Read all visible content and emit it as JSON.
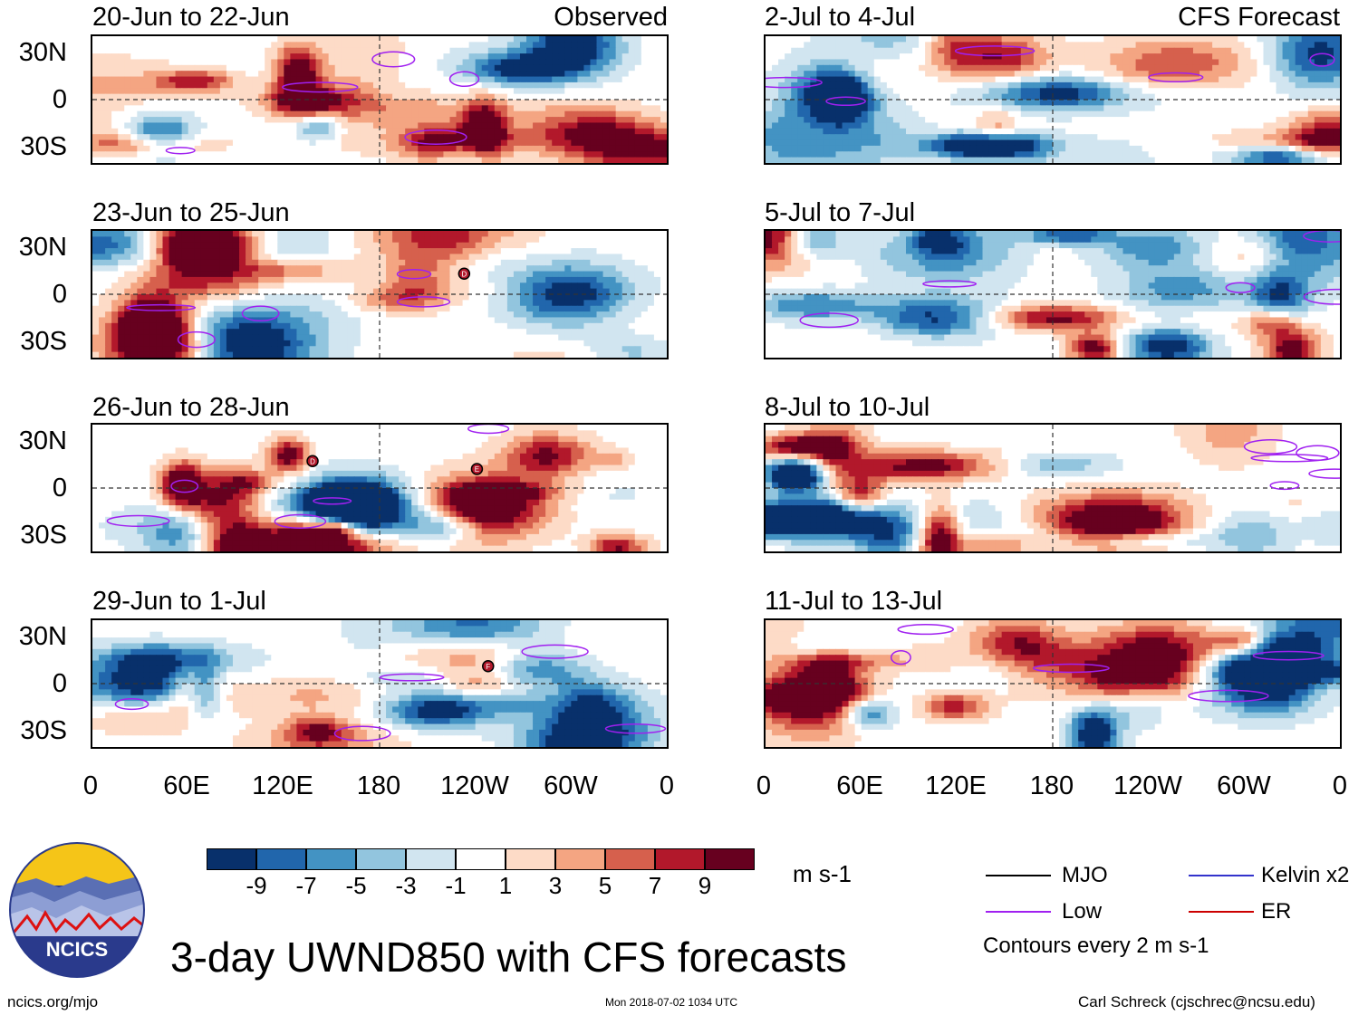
{
  "chart_data": {
    "type": "heatmap",
    "title": "3-day UWND850 with CFS forecasts",
    "units": "m s-1",
    "x_ticks": [
      "0",
      "60E",
      "120E",
      "180",
      "120W",
      "60W",
      "0"
    ],
    "y_ticks": [
      "30N",
      "0",
      "30S"
    ],
    "colorbar": {
      "labels": [
        "-9",
        "-7",
        "-5",
        "-3",
        "-1",
        "1",
        "3",
        "5",
        "7",
        "9"
      ],
      "colors": [
        "#08306b",
        "#2166ac",
        "#4393c3",
        "#92c5de",
        "#d1e5f0",
        "#ffffff",
        "#fddbc7",
        "#f4a582",
        "#d6604d",
        "#b2182b",
        "#67001f"
      ]
    },
    "observed_label": "Observed",
    "forecast_label": "CFS Forecast",
    "panels_left": [
      {
        "title": "20-Jun to 22-Jun"
      },
      {
        "title": "23-Jun to 25-Jun"
      },
      {
        "title": "26-Jun to 28-Jun"
      },
      {
        "title": "29-Jun to 1-Jul"
      }
    ],
    "panels_right": [
      {
        "title": "2-Jul to 4-Jul"
      },
      {
        "title": "5-Jul to 7-Jul"
      },
      {
        "title": "8-Jul to 10-Jul"
      },
      {
        "title": "11-Jul to 13-Jul"
      }
    ],
    "storm_markers": [
      {
        "panel": 1,
        "label": "D",
        "lon": 233,
        "lat": 13
      },
      {
        "panel": 2,
        "label": "D",
        "lon": 138,
        "lat": 17
      },
      {
        "panel": 2,
        "label": "E",
        "lon": 241,
        "lat": 12
      },
      {
        "panel": 3,
        "label": "F",
        "lon": 248,
        "lat": 11
      }
    ],
    "legend": {
      "items": [
        {
          "label": "MJO",
          "color": "#000000"
        },
        {
          "label": "Kelvin x2",
          "color": "#3333cc"
        },
        {
          "label": "Low",
          "color": "#a020f0"
        },
        {
          "label": "ER",
          "color": "#cc0000"
        }
      ],
      "note": "Contours every 2 m s-1"
    }
  },
  "footer": {
    "logo_text": "NCICS",
    "url": "ncics.org/mjo",
    "timestamp": "Mon 2018-07-02 1034 UTC",
    "author": "Carl Schreck (cjschrec@ncsu.edu)"
  }
}
